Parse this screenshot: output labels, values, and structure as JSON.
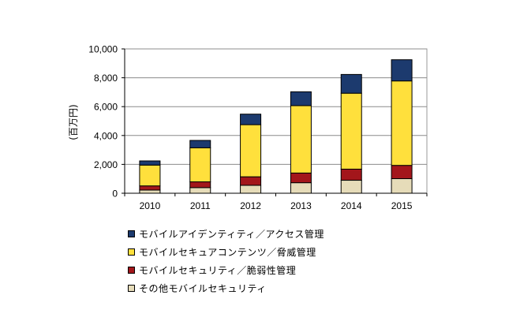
{
  "chart_data": {
    "type": "bar",
    "stacked": true,
    "title": "",
    "xlabel": "",
    "ylabel": "(百万円)",
    "categories": [
      "2010",
      "2011",
      "2012",
      "2013",
      "2014",
      "2015"
    ],
    "ylim": [
      0,
      10000
    ],
    "yticks": [
      0,
      2000,
      4000,
      6000,
      8000,
      10000
    ],
    "ytick_labels": [
      "0",
      "2,000",
      "4,000",
      "6,000",
      "8,000",
      "10,000"
    ],
    "grid": true,
    "legend_position": "bottom",
    "series": [
      {
        "name": "その他モバイルセキュリティ",
        "color": "#e6dcb9",
        "values": [
          220,
          390,
          550,
          730,
          900,
          1010
        ]
      },
      {
        "name": "モバイルセキュリティ／脆弱性管理",
        "color": "#a3161b",
        "values": [
          290,
          400,
          590,
          670,
          770,
          920
        ]
      },
      {
        "name": "モバイルセキュアコンテンツ／脅威管理",
        "color": "#ffe03c",
        "values": [
          1440,
          2360,
          3610,
          4670,
          5260,
          5850
        ]
      },
      {
        "name": "モバイルアイデンティティ／アクセス管理",
        "color": "#1c3a6e",
        "values": [
          290,
          510,
          730,
          960,
          1300,
          1470
        ]
      }
    ],
    "totals": [
      2240,
      3660,
      5480,
      7030,
      8230,
      9250
    ]
  },
  "legend": {
    "items": [
      {
        "label": "モバイルアイデンティティ／アクセス管理",
        "color": "#1c3a6e"
      },
      {
        "label": "モバイルセキュアコンテンツ／脅威管理",
        "color": "#ffe03c"
      },
      {
        "label": "モバイルセキュリティ／脆弱性管理",
        "color": "#a3161b"
      },
      {
        "label": "その他モバイルセキュリティ",
        "color": "#e6dcb9"
      }
    ]
  }
}
